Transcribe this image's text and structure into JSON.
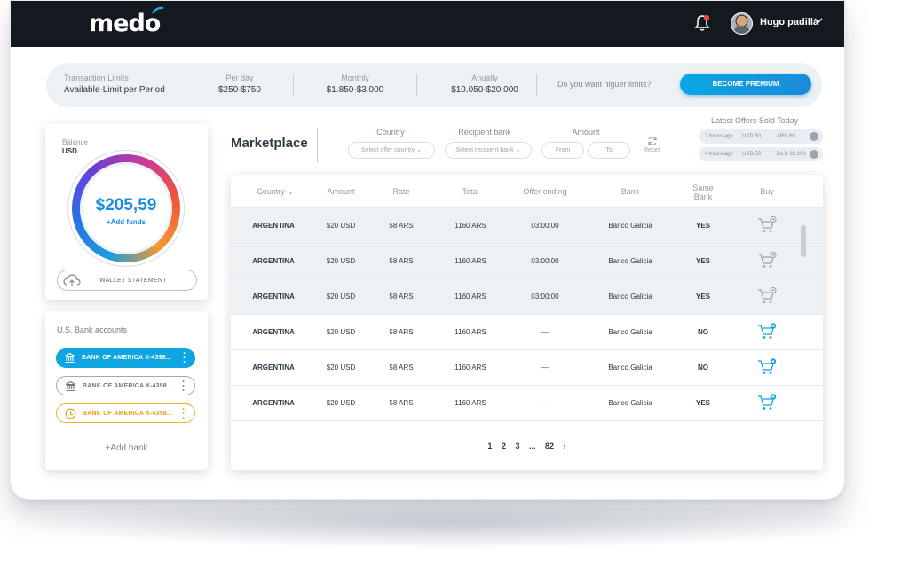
{
  "app": {
    "logo_text": "medo",
    "user_name": "Hugo padilla"
  },
  "limits": {
    "title": "Transaction Limits",
    "subtitle": "Available-Limit per Period",
    "per_day_label": "Per day",
    "per_day_value": "$250-$750",
    "monthly_label": "Monthly",
    "monthly_value": "$1.850-$3.000",
    "anually_label": "Anually",
    "anually_value": "$10.050-$20.000",
    "question": "Do you want higuer limits?",
    "premium_button": "BECOME PREMIUM"
  },
  "balance": {
    "label": "Balance",
    "currency": "USD",
    "amount": "$205,59",
    "add_funds": "+Add funds",
    "wallet_button": "WALLET STATEMENT"
  },
  "bank_accounts": {
    "title": "U.S. Bank accounts",
    "items": [
      {
        "label": "BANK OF AMERICA X-4398...",
        "state": "active"
      },
      {
        "label": "BANK OF AMERICA X-4398...",
        "state": "plain"
      },
      {
        "label": "BANK OF AMERICA X-4398...",
        "state": "pending"
      }
    ],
    "add_bank": "+Add bank"
  },
  "marketplace": {
    "title": "Marketplace",
    "filters": {
      "country_label": "Country",
      "country_placeholder": "Select offer country",
      "bank_label": "Recipient bank",
      "bank_placeholder": "Select recipient bank",
      "amount_label": "Amount",
      "from_placeholder": "From",
      "to_placeholder": "To",
      "reset_label": "Reset"
    },
    "latest_offers": {
      "title": "Latest Offers Sold Today",
      "items": [
        {
          "time": "2 hours ago",
          "usd": "USD 50",
          "local": "ARS 60"
        },
        {
          "time": "4 hours ago",
          "usd": "USD 50",
          "local": "Bs.S 22.000"
        }
      ]
    },
    "table": {
      "columns": [
        "Country",
        "Amount",
        "Rate",
        "Total",
        "Offer ending",
        "Bank",
        "Same Bank",
        "Buy"
      ],
      "rows": [
        {
          "country": "ARGENTINA",
          "amount": "$20 USD",
          "rate": "58 ARS",
          "total": "1160 ARS",
          "ending": "03:00:00",
          "bank": "Banco Galicia",
          "same": "YES"
        },
        {
          "country": "ARGENTINA",
          "amount": "$20 USD",
          "rate": "58 ARS",
          "total": "1160 ARS",
          "ending": "03:00:00",
          "bank": "Banco Galicia",
          "same": "YES"
        },
        {
          "country": "ARGENTINA",
          "amount": "$20 USD",
          "rate": "58 ARS",
          "total": "1160 ARS",
          "ending": "03:00:00",
          "bank": "Banco Galicia",
          "same": "YES"
        },
        {
          "country": "ARGENTINA",
          "amount": "$20 USD",
          "rate": "58 ARS",
          "total": "1160 ARS",
          "ending": "—",
          "bank": "Banco Galicia",
          "same": "NO"
        },
        {
          "country": "ARGENTINA",
          "amount": "$20 USD",
          "rate": "58 ARS",
          "total": "1160 ARS",
          "ending": "—",
          "bank": "Banco Galicia",
          "same": "NO"
        },
        {
          "country": "ARGENTINA",
          "amount": "$20 USD",
          "rate": "58 ARS",
          "total": "1160 ARS",
          "ending": "—",
          "bank": "Banco Galicia",
          "same": "YES"
        }
      ]
    },
    "pagination": [
      "1",
      "2",
      "3",
      "...",
      "82",
      "›"
    ]
  },
  "colors": {
    "brand_blue": "#0fa5e0",
    "dark_bar": "#14191f",
    "pending_orange": "#f2b41e"
  },
  "icons": [
    "bell-icon",
    "chevron-down-icon",
    "cloud-upload-icon",
    "bank-icon",
    "clock-icon",
    "more-vertical-icon",
    "refresh-icon",
    "check-icon",
    "cart-icon"
  ]
}
